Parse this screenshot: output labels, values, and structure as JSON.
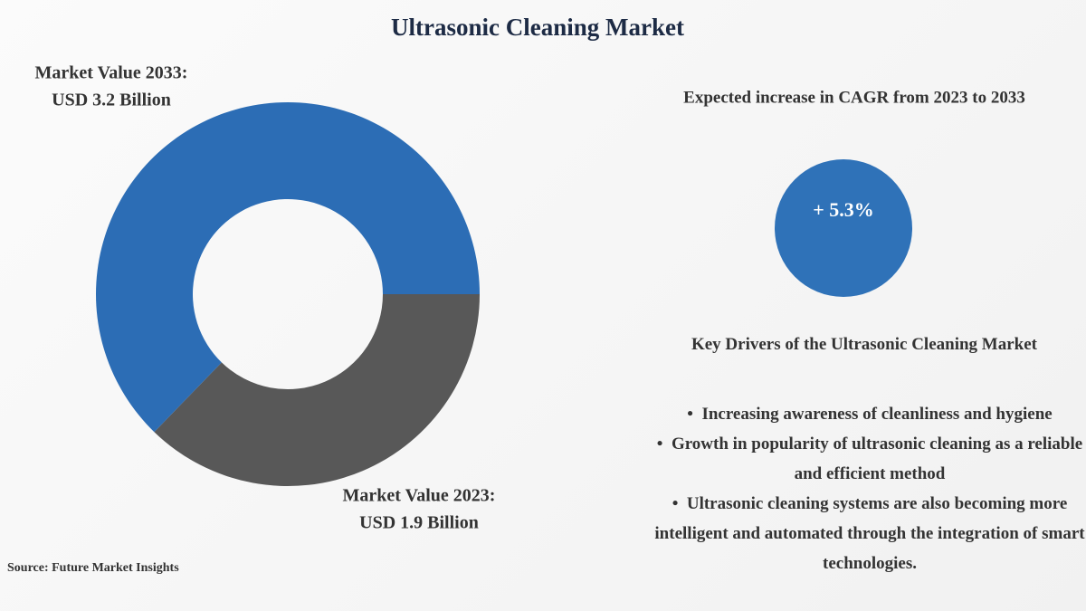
{
  "title": "Ultrasonic Cleaning Market",
  "chart_data": {
    "type": "donut",
    "categories": [
      "Market Value 2033:",
      "Market Value 2023:"
    ],
    "values": [
      3.2,
      1.9
    ],
    "value_labels": [
      "USD 3.2 Billion",
      "USD 1.9 Billion"
    ],
    "colors": [
      "#2c6db5",
      "#585858"
    ]
  },
  "cagr": {
    "heading": "Expected increase in CAGR from 2023 to 2033",
    "text": "+ 5.3%"
  },
  "drivers": {
    "heading": "Key Drivers of the Ultrasonic Cleaning Market",
    "items": [
      "Increasing awareness of cleanliness and hygiene",
      "Growth in popularity of ultrasonic cleaning as a reliable and efficient method",
      "Ultrasonic cleaning systems are also becoming more intelligent and automated through the integration of smart technologies."
    ]
  },
  "source": "Source: Future Market Insights"
}
